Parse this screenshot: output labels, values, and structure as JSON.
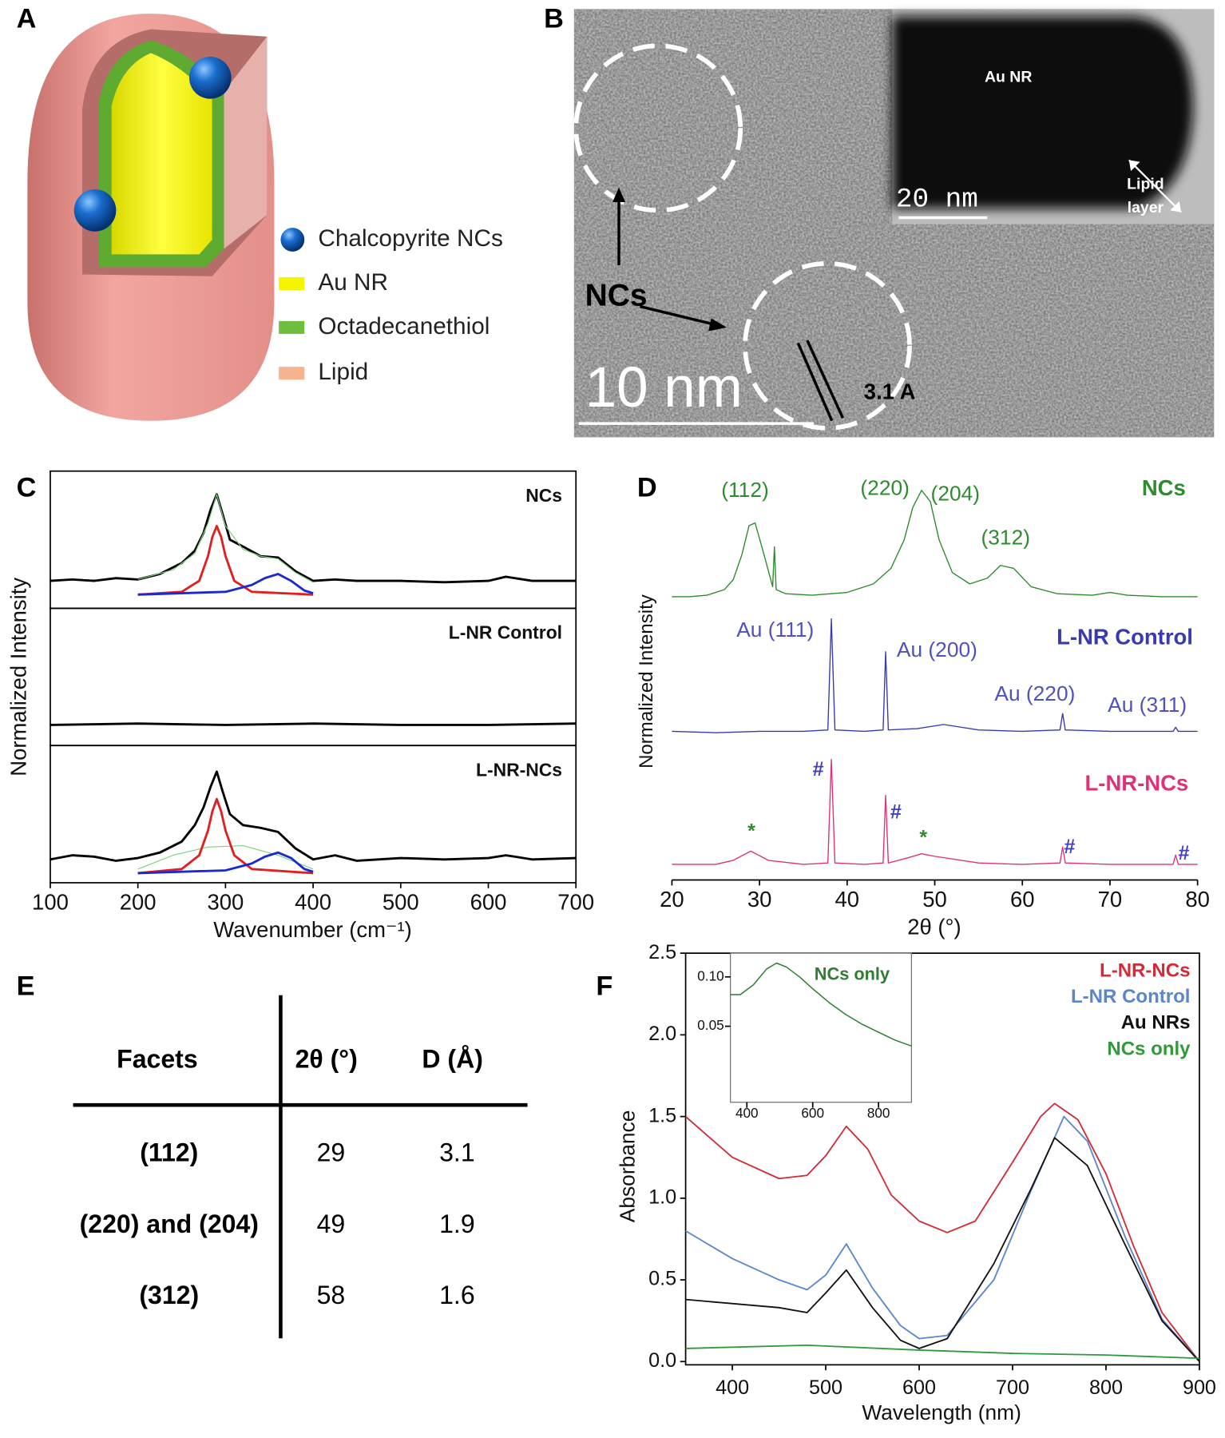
{
  "panel_labels": [
    "A",
    "B",
    "C",
    "D",
    "E",
    "F"
  ],
  "diagram": {
    "legend": [
      "Chalcopyrite NCs",
      "Au NR",
      "Octadecanethiol",
      "Lipid"
    ]
  },
  "micrograph": {
    "nc_label": "NCs",
    "scale_bar": "10 nm",
    "spacing": "3.1 A",
    "inset_label": "Au NR",
    "inset_scale_bar": "20 nm",
    "lipid_label": [
      "Lipid",
      "layer"
    ]
  },
  "chart_data": [
    {
      "type": "line",
      "xlabel": "Wavenumber (cm⁻¹)",
      "ylabel": "Normalized Intensity",
      "xlim": [
        100,
        700
      ],
      "xticks": [
        100,
        200,
        300,
        400,
        500,
        600,
        700
      ],
      "panels": [
        {
          "title": "NCs",
          "ylim": [
            0,
            1
          ],
          "series": [
            {
              "color": "#000000",
              "x": [
                100,
                125,
                150,
                175,
                200,
                225,
                250,
                265,
                275,
                283,
                290,
                297,
                305,
                320,
                340,
                360,
                380,
                400,
                425,
                450,
                500,
                550,
                600,
                620,
                650,
                700
              ],
              "values": [
                0.2,
                0.21,
                0.2,
                0.22,
                0.21,
                0.25,
                0.33,
                0.42,
                0.55,
                0.72,
                0.83,
                0.68,
                0.5,
                0.45,
                0.38,
                0.37,
                0.27,
                0.2,
                0.21,
                0.2,
                0.2,
                0.19,
                0.2,
                0.23,
                0.2,
                0.2
              ]
            },
            {
              "color": "#7fd07f",
              "x": [
                200,
                240,
                265,
                280,
                290,
                300,
                320,
                340,
                360,
                380,
                400
              ],
              "values": [
                0.21,
                0.28,
                0.4,
                0.62,
                0.83,
                0.6,
                0.43,
                0.38,
                0.36,
                0.26,
                0.19
              ]
            },
            {
              "color": "#e02020",
              "x": [
                200,
                250,
                270,
                280,
                285,
                290,
                295,
                300,
                310,
                330,
                400
              ],
              "values": [
                0.1,
                0.12,
                0.2,
                0.38,
                0.52,
                0.6,
                0.52,
                0.38,
                0.2,
                0.12,
                0.1
              ]
            },
            {
              "color": "#1a2ad0",
              "x": [
                200,
                300,
                330,
                345,
                360,
                375,
                390,
                400
              ],
              "values": [
                0.1,
                0.12,
                0.17,
                0.22,
                0.25,
                0.2,
                0.13,
                0.11
              ]
            }
          ]
        },
        {
          "title": "L-NR Control",
          "ylim": [
            0,
            1
          ],
          "series": [
            {
              "color": "#000000",
              "x": [
                100,
                200,
                300,
                400,
                500,
                600,
                700
              ],
              "values": [
                0.15,
                0.16,
                0.15,
                0.16,
                0.15,
                0.15,
                0.16
              ]
            }
          ]
        },
        {
          "title": "L-NR-NCs",
          "ylim": [
            0,
            1
          ],
          "series": [
            {
              "color": "#000000",
              "x": [
                100,
                125,
                150,
                175,
                200,
                225,
                250,
                265,
                275,
                283,
                290,
                297,
                305,
                320,
                340,
                360,
                380,
                400,
                425,
                450,
                500,
                550,
                600,
                620,
                650,
                700
              ],
              "values": [
                0.17,
                0.2,
                0.19,
                0.16,
                0.18,
                0.22,
                0.3,
                0.42,
                0.55,
                0.7,
                0.81,
                0.66,
                0.5,
                0.42,
                0.4,
                0.37,
                0.25,
                0.17,
                0.2,
                0.16,
                0.18,
                0.17,
                0.18,
                0.2,
                0.17,
                0.18
              ]
            },
            {
              "color": "#7fd07f",
              "x": [
                200,
                240,
                280,
                320,
                360,
                400
              ],
              "values": [
                0.1,
                0.2,
                0.26,
                0.27,
                0.2,
                0.1
              ]
            },
            {
              "color": "#e02020",
              "x": [
                200,
                250,
                270,
                280,
                285,
                290,
                295,
                300,
                310,
                330,
                400
              ],
              "values": [
                0.07,
                0.1,
                0.2,
                0.38,
                0.52,
                0.61,
                0.52,
                0.38,
                0.2,
                0.1,
                0.07
              ]
            },
            {
              "color": "#1a2ad0",
              "x": [
                200,
                300,
                330,
                345,
                360,
                375,
                390,
                400
              ],
              "values": [
                0.07,
                0.09,
                0.14,
                0.19,
                0.22,
                0.18,
                0.1,
                0.08
              ]
            }
          ]
        }
      ]
    },
    {
      "type": "line",
      "xlabel": "2θ (°)",
      "ylabel": "Normalized Intensity",
      "xlim": [
        20,
        80
      ],
      "xticks": [
        20,
        30,
        40,
        50,
        60,
        70,
        80
      ],
      "series": [
        {
          "name": "NCs",
          "color": "#2e8b2e",
          "ylim": [
            0,
            1
          ],
          "x": [
            20,
            22,
            24,
            26,
            27,
            28,
            28.8,
            29.5,
            30.5,
            31.5,
            31.7,
            31.9,
            33,
            36,
            40,
            43,
            45,
            46.5,
            47.5,
            48.5,
            49.5,
            50.5,
            52,
            54,
            56,
            57.5,
            59,
            61,
            64,
            68,
            70,
            72,
            76,
            80
          ],
          "values": [
            0.05,
            0.05,
            0.06,
            0.1,
            0.17,
            0.35,
            0.55,
            0.57,
            0.35,
            0.12,
            0.4,
            0.1,
            0.07,
            0.06,
            0.08,
            0.14,
            0.25,
            0.45,
            0.68,
            0.8,
            0.72,
            0.45,
            0.22,
            0.14,
            0.18,
            0.27,
            0.25,
            0.12,
            0.07,
            0.06,
            0.08,
            0.06,
            0.05,
            0.05
          ],
          "annotations": [
            {
              "text": "(112)",
              "color": "#2e8b2e"
            },
            {
              "text": "(220)",
              "color": "#2e8b2e"
            },
            {
              "text": "(204)",
              "color": "#2e8b2e"
            },
            {
              "text": "(312)",
              "color": "#2e8b2e"
            }
          ]
        },
        {
          "name": "L-NR Control",
          "color": "#3a3ab0",
          "ylim": [
            0,
            1
          ],
          "x": [
            20,
            25,
            30,
            35,
            37.8,
            38.2,
            38.6,
            42,
            44.1,
            44.4,
            44.7,
            48,
            51,
            55,
            60,
            64.3,
            64.6,
            64.9,
            70,
            77.2,
            77.5,
            77.8,
            80
          ],
          "values": [
            0.07,
            0.06,
            0.07,
            0.07,
            0.08,
            0.89,
            0.08,
            0.07,
            0.08,
            0.65,
            0.08,
            0.09,
            0.12,
            0.08,
            0.07,
            0.08,
            0.2,
            0.08,
            0.07,
            0.07,
            0.1,
            0.07,
            0.07
          ],
          "annotations": [
            {
              "text": "Au (111)",
              "color": "#5050c0"
            },
            {
              "text": "Au (200)",
              "color": "#5050c0"
            },
            {
              "text": "Au (220)",
              "color": "#5050c0"
            },
            {
              "text": "Au (311)",
              "color": "#5050c0"
            }
          ]
        },
        {
          "name": "L-NR-NCs",
          "color": "#e0307a",
          "ylim": [
            0,
            1
          ],
          "x": [
            20,
            25,
            27,
            29,
            31,
            35,
            37.8,
            38.2,
            38.6,
            42,
            44.1,
            44.4,
            44.7,
            47,
            48.5,
            50,
            55,
            60,
            64.3,
            64.6,
            64.9,
            70,
            77.2,
            77.5,
            77.8,
            80
          ],
          "values": [
            0.07,
            0.07,
            0.1,
            0.17,
            0.1,
            0.07,
            0.08,
            0.86,
            0.08,
            0.07,
            0.08,
            0.59,
            0.08,
            0.12,
            0.15,
            0.13,
            0.08,
            0.07,
            0.08,
            0.2,
            0.08,
            0.07,
            0.07,
            0.14,
            0.07,
            0.07
          ],
          "annotations": [
            {
              "text": "#",
              "color": "#4040c0"
            },
            {
              "text": "*",
              "color": "#2e8b2e"
            },
            {
              "text": "#",
              "color": "#4040c0"
            },
            {
              "text": "*",
              "color": "#2e8b2e"
            },
            {
              "text": "#",
              "color": "#4040c0"
            },
            {
              "text": "#",
              "color": "#4040c0"
            }
          ]
        }
      ]
    },
    {
      "type": "line",
      "xlabel": "Wavelength (nm)",
      "ylabel": "Absorbance",
      "xlim": [
        350,
        900
      ],
      "xticks": [
        400,
        500,
        600,
        700,
        800,
        900
      ],
      "ylim": [
        -0.02,
        2.5
      ],
      "yticks": [
        {
          "value": 0,
          "label": "0.0"
        },
        0.5,
        {
          "value": 1,
          "label": "1.0"
        },
        1.5,
        {
          "value": 2,
          "label": "2.0"
        },
        2.5
      ],
      "legend": "upper right",
      "series": [
        {
          "name": "L-NR-NCs",
          "color": "#d42a36",
          "x": [
            350,
            400,
            450,
            480,
            500,
            522,
            545,
            570,
            600,
            630,
            660,
            700,
            730,
            745,
            770,
            800,
            830,
            860,
            900
          ],
          "values": [
            1.5,
            1.25,
            1.12,
            1.14,
            1.26,
            1.44,
            1.3,
            1.02,
            0.86,
            0.79,
            0.86,
            1.22,
            1.5,
            1.58,
            1.48,
            1.15,
            0.7,
            0.3,
            0.0
          ]
        },
        {
          "name": "L-NR Control",
          "color": "#5b86c8",
          "x": [
            350,
            400,
            450,
            480,
            500,
            522,
            550,
            580,
            600,
            630,
            680,
            720,
            755,
            780,
            820,
            860,
            900
          ],
          "values": [
            0.8,
            0.63,
            0.5,
            0.44,
            0.53,
            0.72,
            0.45,
            0.22,
            0.14,
            0.16,
            0.5,
            1.05,
            1.5,
            1.35,
            0.77,
            0.26,
            0.0
          ]
        },
        {
          "name": "Au NRs",
          "color": "#111111",
          "x": [
            350,
            450,
            480,
            500,
            522,
            550,
            580,
            600,
            630,
            680,
            720,
            745,
            780,
            820,
            860,
            900
          ],
          "values": [
            0.38,
            0.33,
            0.3,
            0.42,
            0.56,
            0.33,
            0.13,
            0.08,
            0.14,
            0.6,
            1.06,
            1.37,
            1.2,
            0.72,
            0.25,
            0.0
          ]
        },
        {
          "name": "NCs only",
          "color": "#2e9a3a",
          "x": [
            350,
            480,
            600,
            700,
            800,
            900
          ],
          "values": [
            0.08,
            0.1,
            0.07,
            0.05,
            0.04,
            0.02
          ]
        }
      ],
      "inset": {
        "type": "line",
        "title": "NCs only",
        "xlim": [
          350,
          900
        ],
        "xticks": [
          400,
          600,
          800
        ],
        "ylim": [
          -0.027,
          0.124
        ],
        "yticks": [
          0.05,
          {
            "value": 0.1,
            "label": "0.10"
          }
        ],
        "series": [
          {
            "color": "#2e7d32",
            "x": [
              350,
              380,
              420,
              460,
              490,
              520,
              560,
              600,
              650,
              700,
              750,
              800,
              850,
              900
            ],
            "values": [
              0.082,
              0.082,
              0.092,
              0.108,
              0.114,
              0.11,
              0.1,
              0.088,
              0.074,
              0.062,
              0.052,
              0.044,
              0.036,
              0.03
            ]
          }
        ]
      }
    }
  ],
  "table": {
    "columns": [
      "Facets",
      "2θ (°)",
      "D (Å)"
    ],
    "rows": [
      [
        "(112)",
        29,
        3.1
      ],
      [
        "(220) and (204)",
        49,
        1.9
      ],
      [
        "(312)",
        58,
        1.6
      ]
    ]
  }
}
